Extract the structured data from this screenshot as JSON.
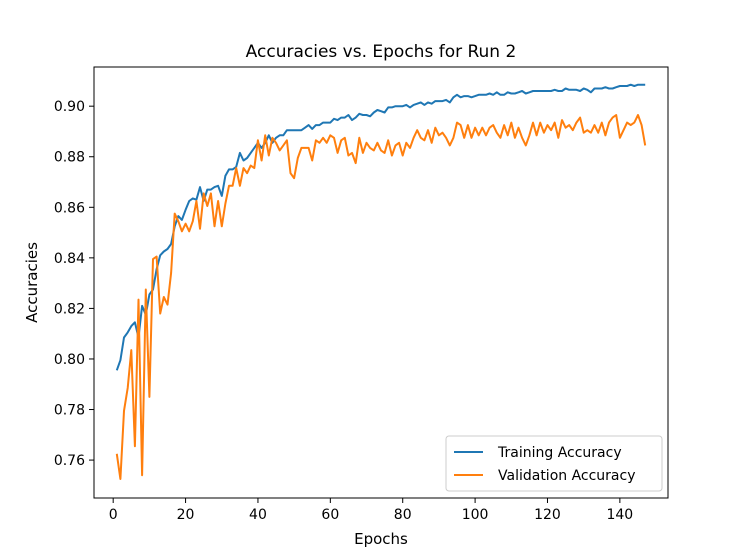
{
  "chart_data": {
    "type": "line",
    "title": "Accuracies vs. Epochs for Run 2",
    "xlabel": "Epochs",
    "ylabel": "Accuracies",
    "xlim": [
      -5.3,
      153.3
    ],
    "ylim": [
      0.745,
      0.9155
    ],
    "xticks": [
      0,
      20,
      40,
      60,
      80,
      100,
      120,
      140
    ],
    "xtick_labels": [
      "0",
      "20",
      "40",
      "60",
      "80",
      "100",
      "120",
      "140"
    ],
    "yticks": [
      0.76,
      0.78,
      0.8,
      0.82,
      0.84,
      0.86,
      0.88,
      0.9
    ],
    "ytick_labels": [
      "0.76",
      "0.78",
      "0.80",
      "0.82",
      "0.84",
      "0.86",
      "0.88",
      "0.90"
    ],
    "grid": false,
    "legend_position": "bottom-right",
    "series": [
      {
        "name": "Training Accuracy",
        "color": "#1f77b4",
        "x": [
          1,
          2,
          3,
          4,
          5,
          6,
          7,
          8,
          9,
          10,
          11,
          12,
          13,
          14,
          15,
          16,
          17,
          18,
          19,
          20,
          21,
          22,
          23,
          24,
          25,
          26,
          27,
          28,
          29,
          30,
          31,
          32,
          33,
          34,
          35,
          36,
          37,
          38,
          39,
          40,
          41,
          42,
          43,
          44,
          45,
          46,
          47,
          48,
          49,
          50,
          51,
          52,
          53,
          54,
          55,
          56,
          57,
          58,
          59,
          60,
          61,
          62,
          63,
          64,
          65,
          66,
          67,
          68,
          69,
          70,
          71,
          72,
          73,
          74,
          75,
          76,
          77,
          78,
          79,
          80,
          81,
          82,
          83,
          84,
          85,
          86,
          87,
          88,
          89,
          90,
          91,
          92,
          93,
          94,
          95,
          96,
          97,
          98,
          99,
          100,
          101,
          102,
          103,
          104,
          105,
          106,
          107,
          108,
          109,
          110,
          111,
          112,
          113,
          114,
          115,
          116,
          117,
          118,
          119,
          120,
          121,
          122,
          123,
          124,
          125,
          126,
          127,
          128,
          129,
          130,
          131,
          132,
          133,
          134,
          135,
          136,
          137,
          138,
          139,
          140,
          141,
          142,
          143,
          144,
          145,
          146,
          147
        ],
        "y": [
          0.7955,
          0.7995,
          0.8085,
          0.8105,
          0.813,
          0.8145,
          0.8085,
          0.821,
          0.8175,
          0.8255,
          0.8275,
          0.8355,
          0.841,
          0.8425,
          0.8435,
          0.8455,
          0.8525,
          0.8565,
          0.855,
          0.859,
          0.8625,
          0.8635,
          0.863,
          0.868,
          0.8625,
          0.867,
          0.867,
          0.868,
          0.8685,
          0.8645,
          0.8725,
          0.875,
          0.875,
          0.876,
          0.8815,
          0.8785,
          0.8795,
          0.8815,
          0.8835,
          0.8855,
          0.8835,
          0.8855,
          0.8885,
          0.8855,
          0.8875,
          0.8885,
          0.8885,
          0.8905,
          0.8905,
          0.8905,
          0.8905,
          0.8905,
          0.8915,
          0.8925,
          0.891,
          0.8925,
          0.8925,
          0.8935,
          0.8935,
          0.8935,
          0.895,
          0.8945,
          0.8955,
          0.8955,
          0.8965,
          0.8945,
          0.8955,
          0.897,
          0.8965,
          0.8965,
          0.896,
          0.8975,
          0.8985,
          0.898,
          0.8975,
          0.8995,
          0.8995,
          0.9,
          0.9,
          0.9,
          0.9005,
          0.8995,
          0.9005,
          0.901,
          0.9015,
          0.9005,
          0.9015,
          0.901,
          0.902,
          0.902,
          0.902,
          0.9025,
          0.9015,
          0.9035,
          0.9045,
          0.9035,
          0.904,
          0.904,
          0.9035,
          0.904,
          0.9045,
          0.9045,
          0.9045,
          0.905,
          0.9045,
          0.9055,
          0.9045,
          0.9045,
          0.9055,
          0.905,
          0.905,
          0.9055,
          0.906,
          0.905,
          0.9055,
          0.906,
          0.906,
          0.906,
          0.906,
          0.906,
          0.906,
          0.9065,
          0.906,
          0.906,
          0.907,
          0.9065,
          0.9065,
          0.9065,
          0.906,
          0.907,
          0.9065,
          0.9055,
          0.907,
          0.907,
          0.907,
          0.9075,
          0.907,
          0.907,
          0.9075,
          0.908,
          0.908,
          0.908,
          0.9085,
          0.908,
          0.9085,
          0.9085,
          0.9085
        ]
      },
      {
        "name": "Validation Accuracy",
        "color": "#ff7f0e",
        "x": [
          1,
          2,
          3,
          4,
          5,
          6,
          7,
          8,
          9,
          10,
          11,
          12,
          13,
          14,
          15,
          16,
          17,
          18,
          19,
          20,
          21,
          22,
          23,
          24,
          25,
          26,
          27,
          28,
          29,
          30,
          31,
          32,
          33,
          34,
          35,
          36,
          37,
          38,
          39,
          40,
          41,
          42,
          43,
          44,
          45,
          46,
          47,
          48,
          49,
          50,
          51,
          52,
          53,
          54,
          55,
          56,
          57,
          58,
          59,
          60,
          61,
          62,
          63,
          64,
          65,
          66,
          67,
          68,
          69,
          70,
          71,
          72,
          73,
          74,
          75,
          76,
          77,
          78,
          79,
          80,
          81,
          82,
          83,
          84,
          85,
          86,
          87,
          88,
          89,
          90,
          91,
          92,
          93,
          94,
          95,
          96,
          97,
          98,
          99,
          100,
          101,
          102,
          103,
          104,
          105,
          106,
          107,
          108,
          109,
          110,
          111,
          112,
          113,
          114,
          115,
          116,
          117,
          118,
          119,
          120,
          121,
          122,
          123,
          124,
          125,
          126,
          127,
          128,
          129,
          130,
          131,
          132,
          133,
          134,
          135,
          136,
          137,
          138,
          139,
          140,
          141,
          142,
          143,
          144,
          145,
          146,
          147
        ],
        "y": [
          0.7625,
          0.7525,
          0.7795,
          0.7885,
          0.8035,
          0.7655,
          0.8235,
          0.754,
          0.8275,
          0.785,
          0.8395,
          0.8405,
          0.818,
          0.8245,
          0.8215,
          0.834,
          0.8575,
          0.8545,
          0.8505,
          0.8535,
          0.8505,
          0.8545,
          0.8625,
          0.8515,
          0.8655,
          0.8605,
          0.8655,
          0.8525,
          0.8625,
          0.8525,
          0.8615,
          0.8685,
          0.8685,
          0.8755,
          0.8685,
          0.8755,
          0.8735,
          0.8765,
          0.8755,
          0.8865,
          0.8785,
          0.8885,
          0.8805,
          0.8875,
          0.8855,
          0.8825,
          0.8845,
          0.8865,
          0.8735,
          0.8715,
          0.8795,
          0.8835,
          0.8835,
          0.8835,
          0.8785,
          0.8865,
          0.8855,
          0.8875,
          0.8855,
          0.8885,
          0.8875,
          0.8815,
          0.8865,
          0.8875,
          0.8805,
          0.8815,
          0.8775,
          0.8875,
          0.8815,
          0.8855,
          0.8835,
          0.8825,
          0.8855,
          0.8825,
          0.8815,
          0.8865,
          0.8805,
          0.8845,
          0.8855,
          0.8805,
          0.8855,
          0.8835,
          0.8875,
          0.8905,
          0.8875,
          0.8865,
          0.8905,
          0.8855,
          0.8915,
          0.8885,
          0.8895,
          0.8875,
          0.8845,
          0.8875,
          0.8935,
          0.8925,
          0.8875,
          0.8925,
          0.8875,
          0.8915,
          0.8885,
          0.8915,
          0.8885,
          0.8915,
          0.8925,
          0.8895,
          0.8875,
          0.8925,
          0.8885,
          0.8935,
          0.8875,
          0.8915,
          0.8875,
          0.8845,
          0.8885,
          0.8935,
          0.8885,
          0.8935,
          0.8895,
          0.8925,
          0.8905,
          0.8935,
          0.8875,
          0.8945,
          0.8915,
          0.8925,
          0.8905,
          0.8935,
          0.8955,
          0.8895,
          0.8905,
          0.8895,
          0.8925,
          0.8895,
          0.8935,
          0.8885,
          0.8935,
          0.8955,
          0.8965,
          0.8875,
          0.8905,
          0.8935,
          0.8925,
          0.8935,
          0.8965,
          0.8925,
          0.8845
        ]
      }
    ]
  }
}
